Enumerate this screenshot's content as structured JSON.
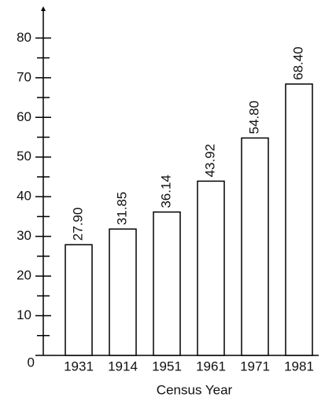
{
  "chart_data": {
    "type": "bar",
    "x_label": "Census Year",
    "categories": [
      "1931",
      "1914",
      "1951",
      "1961",
      "1971",
      "1981"
    ],
    "values": [
      27.9,
      31.85,
      36.14,
      43.92,
      54.8,
      68.4
    ],
    "value_labels": [
      "27.90",
      "31.85",
      "36.14",
      "43.92",
      "54.80",
      "68.40"
    ],
    "color": "#ffffff",
    "ylim": [
      0,
      88
    ],
    "yticks": [
      0,
      10,
      20,
      30,
      40,
      50,
      60,
      70,
      80
    ],
    "minor_yticks": [
      5,
      15,
      25,
      35,
      45,
      55,
      65,
      75
    ]
  }
}
